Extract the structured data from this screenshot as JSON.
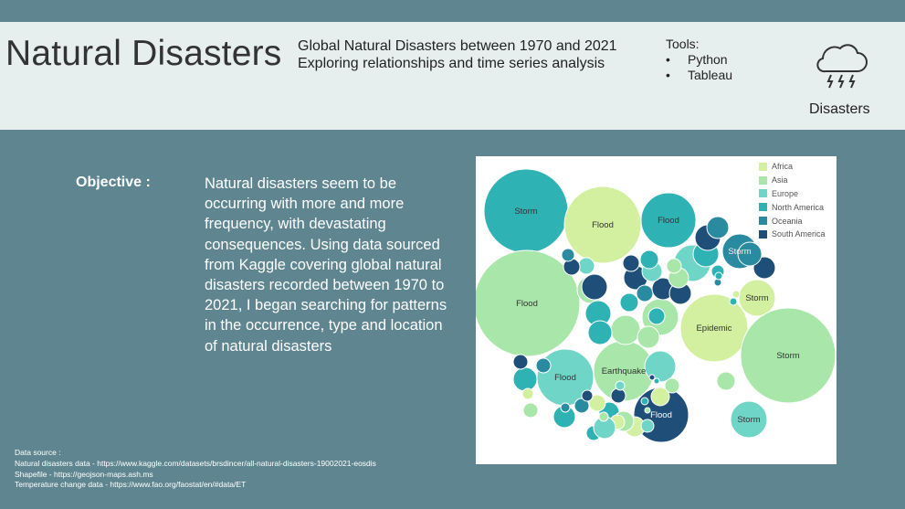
{
  "header": {
    "title": "Natural Disasters",
    "subtitle_line1": "Global Natural Disasters between 1970 and 2021",
    "subtitle_line2": "Exploring relationships and time series analysis",
    "tools_label": "Tools:",
    "tools": [
      "Python",
      "Tableau"
    ],
    "icon": "storm-cloud-icon",
    "icon_label": "Disasters"
  },
  "objective": {
    "label": "Objective :",
    "text": "Natural disasters seem to be occurring with more and more frequency, with devastating consequences. Using data sourced from Kaggle covering global natural disasters recorded between 1970 to 2021, I began searching for patterns in the occurrence, type and location of natural disasters"
  },
  "chart_data": {
    "type": "bubble",
    "legend": [
      {
        "name": "Africa",
        "color": "#d2f0a0"
      },
      {
        "name": "Asia",
        "color": "#a9e6a9"
      },
      {
        "name": "Europe",
        "color": "#6fd6c7"
      },
      {
        "name": "North America",
        "color": "#2fb2b4"
      },
      {
        "name": "Oceania",
        "color": "#2a8aa0"
      },
      {
        "name": "South America",
        "color": "#1f4f78"
      }
    ],
    "labeled_bubbles": [
      {
        "label": "Storm",
        "region": "North America"
      },
      {
        "label": "Flood",
        "region": "Africa"
      },
      {
        "label": "Flood",
        "region": "North America"
      },
      {
        "label": "Storm",
        "region": "Oceania"
      },
      {
        "label": "Flood",
        "region": "Asia"
      },
      {
        "label": "Storm",
        "region": "Africa"
      },
      {
        "label": "Epidemic",
        "region": "Africa"
      },
      {
        "label": "Storm",
        "region": "Asia"
      },
      {
        "label": "Flood",
        "region": "Europe"
      },
      {
        "label": "Earthquake",
        "region": "Asia"
      },
      {
        "label": "Flood",
        "region": "South America"
      },
      {
        "label": "Storm",
        "region": "Europe"
      }
    ]
  },
  "source": {
    "heading": "Data source :",
    "lines": [
      "Natural disasters data - https://www.kaggle.com/datasets/brsdincer/all-natural-disasters-19002021-eosdis",
      "Shapefile - https://geojson-maps.ash.ms",
      "Temperature change data - https://www.fao.org/faostat/en/#data/ET"
    ]
  }
}
